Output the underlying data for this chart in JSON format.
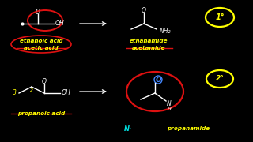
{
  "bg_color": "#000000",
  "white": "#ffffff",
  "yellow": "#ffff00",
  "red": "#dd1111",
  "cyan": "#00dddd",
  "blue": "#4488ff",
  "text_ethanoic": "ethanoic acid",
  "text_acetic": "acetic acid",
  "text_ethanamide": "ethanamide",
  "text_acetamide": "acetamide",
  "text_propanoic": "propanoic acid",
  "text_propanamide": "propanamide",
  "text_1deg": "1°",
  "text_2deg": "2°",
  "text_N": "N·"
}
